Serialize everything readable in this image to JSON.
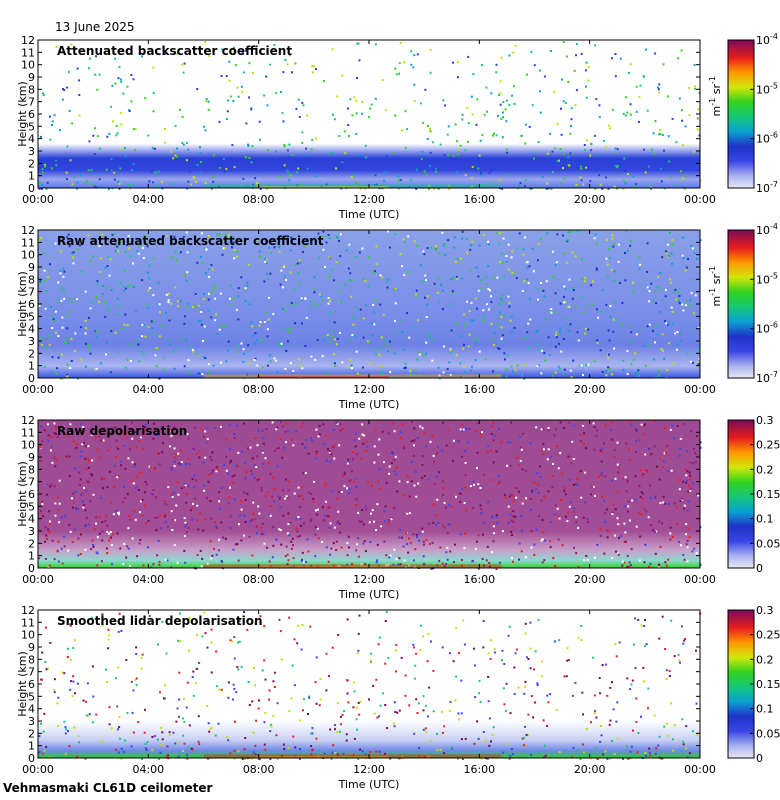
{
  "date_label": "13 June 2025",
  "footer_label": "Vehmasmaki CL61D ceilometer",
  "chart_data": [
    {
      "type": "heatmap",
      "title": "Attenuated backscatter coefficient",
      "xlabel": "Time (UTC)",
      "ylabel": "Height (km)",
      "x_ticks": [
        "00:00",
        "04:00",
        "08:00",
        "12:00",
        "16:00",
        "20:00",
        "00:00"
      ],
      "y_ticks": [
        0,
        1,
        2,
        3,
        4,
        5,
        6,
        7,
        8,
        9,
        10,
        11,
        12
      ],
      "ylim": [
        0,
        12
      ],
      "colorbar": {
        "scale": "log",
        "range": [
          1e-07,
          0.0001
        ],
        "tick_base": "10",
        "tick_exponents": [
          "-7",
          "-6",
          "-5",
          "-4"
        ],
        "label": "m",
        "label_exp1": "-1",
        "label_mid": " sr",
        "label_exp2": "-1"
      }
    },
    {
      "type": "heatmap",
      "title": "Raw attenuated backscatter coefficient",
      "xlabel": "Time (UTC)",
      "ylabel": "Height (km)",
      "x_ticks": [
        "00:00",
        "04:00",
        "08:00",
        "12:00",
        "16:00",
        "20:00",
        "00:00"
      ],
      "y_ticks": [
        0,
        1,
        2,
        3,
        4,
        5,
        6,
        7,
        8,
        9,
        10,
        11,
        12
      ],
      "ylim": [
        0,
        12
      ],
      "colorbar": {
        "scale": "log",
        "range": [
          1e-07,
          0.0001
        ],
        "tick_base": "10",
        "tick_exponents": [
          "-7",
          "-6",
          "-5",
          "-4"
        ],
        "label": "m",
        "label_exp1": "-1",
        "label_mid": " sr",
        "label_exp2": "-1"
      }
    },
    {
      "type": "heatmap",
      "title": "Raw depolarisation",
      "xlabel": "Time (UTC)",
      "ylabel": "Height (km)",
      "x_ticks": [
        "00:00",
        "04:00",
        "08:00",
        "12:00",
        "16:00",
        "20:00",
        "00:00"
      ],
      "y_ticks": [
        0,
        1,
        2,
        3,
        4,
        5,
        6,
        7,
        8,
        9,
        10,
        11,
        12
      ],
      "ylim": [
        0,
        12
      ],
      "colorbar": {
        "scale": "linear",
        "range": [
          0,
          0.3
        ],
        "ticks": [
          "0",
          "0.05",
          "0.1",
          "0.15",
          "0.2",
          "0.25",
          "0.3"
        ]
      }
    },
    {
      "type": "heatmap",
      "title": "Smoothed lidar depolarisation",
      "xlabel": "Time (UTC)",
      "ylabel": "Height (km)",
      "x_ticks": [
        "00:00",
        "04:00",
        "08:00",
        "12:00",
        "16:00",
        "20:00",
        "00:00"
      ],
      "y_ticks": [
        0,
        1,
        2,
        3,
        4,
        5,
        6,
        7,
        8,
        9,
        10,
        11,
        12
      ],
      "ylim": [
        0,
        12
      ],
      "colorbar": {
        "scale": "linear",
        "range": [
          0,
          0.3
        ],
        "ticks": [
          "0",
          "0.05",
          "0.1",
          "0.15",
          "0.2",
          "0.25",
          "0.3"
        ]
      }
    }
  ]
}
